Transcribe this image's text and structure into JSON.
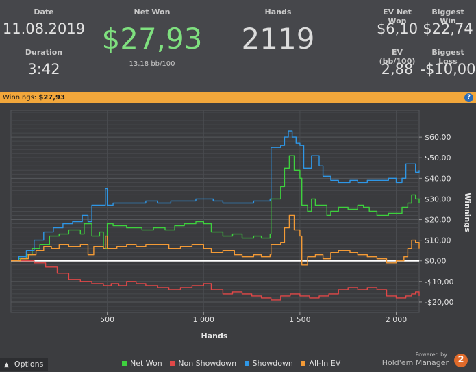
{
  "stats": {
    "date_label": "Date",
    "date_value": "11.08.2019",
    "duration_label": "Duration",
    "duration_value": "3:42",
    "net_won_label": "Net Won",
    "net_won_value": "$27,93",
    "net_won_sub": "13,18 bb/100",
    "hands_label": "Hands",
    "hands_value": "2119",
    "ev_net_won_label": "EV Net Won",
    "ev_net_won_value": "$6,10",
    "biggest_win_label": "Biggest Win",
    "biggest_win_value": "$22,74",
    "ev_bb_label": "EV (bb/100)",
    "ev_bb_value": "2,88",
    "biggest_loss_label": "Biggest Loss",
    "biggest_loss_value": "-$10,00"
  },
  "banner": {
    "label": "Winnings:",
    "amount": "$27,93",
    "help_icon": "?"
  },
  "footer": {
    "options_label": "Options",
    "options_icon": "▲",
    "powered_by": "Powered by",
    "brand_name": "Hold'em Manager",
    "brand_logo": "2"
  },
  "chart_data": {
    "type": "line",
    "xlabel": "Hands",
    "ylabel": "Winnings",
    "xlim": [
      0,
      2119
    ],
    "ylim": [
      -25,
      73
    ],
    "x_ticks": [
      500,
      1000,
      1500,
      2000
    ],
    "x_tick_labels": [
      "500",
      "1 000",
      "1 500",
      "2 000"
    ],
    "y_ticks": [
      60,
      50,
      40,
      30,
      20,
      10,
      0,
      -10,
      -20
    ],
    "y_tick_labels": [
      "$60,00",
      "$50,00",
      "$40,00",
      "$30,00",
      "$20,00",
      "$10,00",
      "$0,00",
      "-$10,00",
      "-$20,00"
    ],
    "grid": true,
    "legend_position": "bottom",
    "series": [
      {
        "name": "Net Won",
        "color": "#3ed13e",
        "points": [
          [
            0,
            0
          ],
          [
            40,
            1
          ],
          [
            80,
            3
          ],
          [
            110,
            6
          ],
          [
            150,
            8
          ],
          [
            200,
            12
          ],
          [
            250,
            13
          ],
          [
            300,
            15
          ],
          [
            360,
            13
          ],
          [
            380,
            18
          ],
          [
            420,
            12
          ],
          [
            460,
            14
          ],
          [
            480,
            6
          ],
          [
            500,
            18
          ],
          [
            530,
            17
          ],
          [
            600,
            16
          ],
          [
            680,
            15
          ],
          [
            740,
            16
          ],
          [
            800,
            15
          ],
          [
            850,
            17
          ],
          [
            900,
            18
          ],
          [
            960,
            19
          ],
          [
            1000,
            18
          ],
          [
            1040,
            14
          ],
          [
            1100,
            12
          ],
          [
            1150,
            13
          ],
          [
            1200,
            11
          ],
          [
            1260,
            12
          ],
          [
            1300,
            11
          ],
          [
            1345,
            13
          ],
          [
            1350,
            30
          ],
          [
            1400,
            36
          ],
          [
            1420,
            45
          ],
          [
            1445,
            51
          ],
          [
            1470,
            44
          ],
          [
            1500,
            40
          ],
          [
            1510,
            27
          ],
          [
            1540,
            24
          ],
          [
            1560,
            30
          ],
          [
            1580,
            27
          ],
          [
            1600,
            27
          ],
          [
            1640,
            22
          ],
          [
            1660,
            24
          ],
          [
            1700,
            26
          ],
          [
            1750,
            25
          ],
          [
            1800,
            27
          ],
          [
            1830,
            26
          ],
          [
            1860,
            24
          ],
          [
            1900,
            22
          ],
          [
            1960,
            23
          ],
          [
            2000,
            23
          ],
          [
            2030,
            26
          ],
          [
            2060,
            28
          ],
          [
            2080,
            32
          ],
          [
            2100,
            30
          ],
          [
            2119,
            27.9
          ]
        ]
      },
      {
        "name": "Non Showdown",
        "color": "#e04848",
        "points": [
          [
            0,
            0
          ],
          [
            60,
            0
          ],
          [
            120,
            -1
          ],
          [
            180,
            -3
          ],
          [
            240,
            -6
          ],
          [
            300,
            -9
          ],
          [
            360,
            -10
          ],
          [
            420,
            -11
          ],
          [
            480,
            -12
          ],
          [
            520,
            -11
          ],
          [
            560,
            -12
          ],
          [
            600,
            -10
          ],
          [
            650,
            -11
          ],
          [
            700,
            -12
          ],
          [
            760,
            -13
          ],
          [
            820,
            -14
          ],
          [
            880,
            -13
          ],
          [
            940,
            -12
          ],
          [
            1000,
            -11
          ],
          [
            1040,
            -14
          ],
          [
            1100,
            -16
          ],
          [
            1150,
            -15
          ],
          [
            1200,
            -16
          ],
          [
            1250,
            -17
          ],
          [
            1300,
            -18
          ],
          [
            1350,
            -19
          ],
          [
            1400,
            -17
          ],
          [
            1450,
            -16
          ],
          [
            1500,
            -17
          ],
          [
            1550,
            -18
          ],
          [
            1600,
            -17
          ],
          [
            1650,
            -16
          ],
          [
            1700,
            -14
          ],
          [
            1750,
            -13
          ],
          [
            1800,
            -14
          ],
          [
            1850,
            -13
          ],
          [
            1900,
            -14
          ],
          [
            1950,
            -17
          ],
          [
            2000,
            -18
          ],
          [
            2050,
            -17
          ],
          [
            2080,
            -16
          ],
          [
            2100,
            -15
          ],
          [
            2119,
            -17
          ]
        ]
      },
      {
        "name": "Showdown",
        "color": "#2f97e6",
        "points": [
          [
            0,
            0
          ],
          [
            40,
            2
          ],
          [
            80,
            5
          ],
          [
            120,
            10
          ],
          [
            170,
            14
          ],
          [
            220,
            16
          ],
          [
            270,
            18
          ],
          [
            320,
            19
          ],
          [
            370,
            22
          ],
          [
            400,
            19
          ],
          [
            420,
            27
          ],
          [
            470,
            27
          ],
          [
            490,
            35
          ],
          [
            500,
            27
          ],
          [
            530,
            28
          ],
          [
            600,
            28
          ],
          [
            650,
            28
          ],
          [
            700,
            29
          ],
          [
            760,
            28
          ],
          [
            830,
            29
          ],
          [
            900,
            29
          ],
          [
            960,
            30
          ],
          [
            1000,
            30
          ],
          [
            1050,
            29
          ],
          [
            1100,
            28
          ],
          [
            1150,
            28
          ],
          [
            1200,
            28
          ],
          [
            1260,
            29
          ],
          [
            1300,
            29
          ],
          [
            1345,
            30
          ],
          [
            1350,
            55
          ],
          [
            1400,
            56
          ],
          [
            1420,
            60
          ],
          [
            1440,
            63
          ],
          [
            1460,
            60
          ],
          [
            1480,
            57
          ],
          [
            1500,
            56
          ],
          [
            1520,
            45
          ],
          [
            1560,
            51
          ],
          [
            1600,
            46
          ],
          [
            1620,
            41
          ],
          [
            1660,
            39
          ],
          [
            1700,
            38
          ],
          [
            1760,
            39
          ],
          [
            1800,
            38
          ],
          [
            1850,
            39
          ],
          [
            1900,
            39
          ],
          [
            1960,
            40
          ],
          [
            2000,
            38
          ],
          [
            2030,
            40
          ],
          [
            2050,
            47
          ],
          [
            2090,
            47
          ],
          [
            2100,
            43
          ],
          [
            2119,
            44
          ]
        ]
      },
      {
        "name": "All-In EV",
        "color": "#f39a36",
        "points": [
          [
            0,
            0
          ],
          [
            50,
            1
          ],
          [
            90,
            3
          ],
          [
            130,
            5
          ],
          [
            170,
            7
          ],
          [
            210,
            6
          ],
          [
            250,
            8
          ],
          [
            300,
            7
          ],
          [
            360,
            8
          ],
          [
            400,
            3
          ],
          [
            430,
            7
          ],
          [
            480,
            6
          ],
          [
            490,
            12
          ],
          [
            500,
            6
          ],
          [
            550,
            7
          ],
          [
            600,
            8
          ],
          [
            650,
            7
          ],
          [
            700,
            8
          ],
          [
            760,
            8
          ],
          [
            820,
            6
          ],
          [
            880,
            7
          ],
          [
            940,
            8
          ],
          [
            1000,
            6
          ],
          [
            1040,
            4
          ],
          [
            1100,
            5
          ],
          [
            1160,
            3
          ],
          [
            1200,
            2
          ],
          [
            1260,
            3
          ],
          [
            1300,
            2
          ],
          [
            1345,
            3
          ],
          [
            1350,
            8
          ],
          [
            1400,
            9
          ],
          [
            1420,
            16
          ],
          [
            1445,
            22
          ],
          [
            1470,
            15
          ],
          [
            1500,
            12
          ],
          [
            1510,
            -2
          ],
          [
            1540,
            2
          ],
          [
            1580,
            3
          ],
          [
            1620,
            1
          ],
          [
            1660,
            4
          ],
          [
            1700,
            5
          ],
          [
            1760,
            4
          ],
          [
            1800,
            3
          ],
          [
            1850,
            2
          ],
          [
            1900,
            1
          ],
          [
            1950,
            -1
          ],
          [
            2000,
            0
          ],
          [
            2040,
            2
          ],
          [
            2060,
            6
          ],
          [
            2080,
            10
          ],
          [
            2100,
            9
          ],
          [
            2119,
            6
          ]
        ]
      }
    ]
  }
}
